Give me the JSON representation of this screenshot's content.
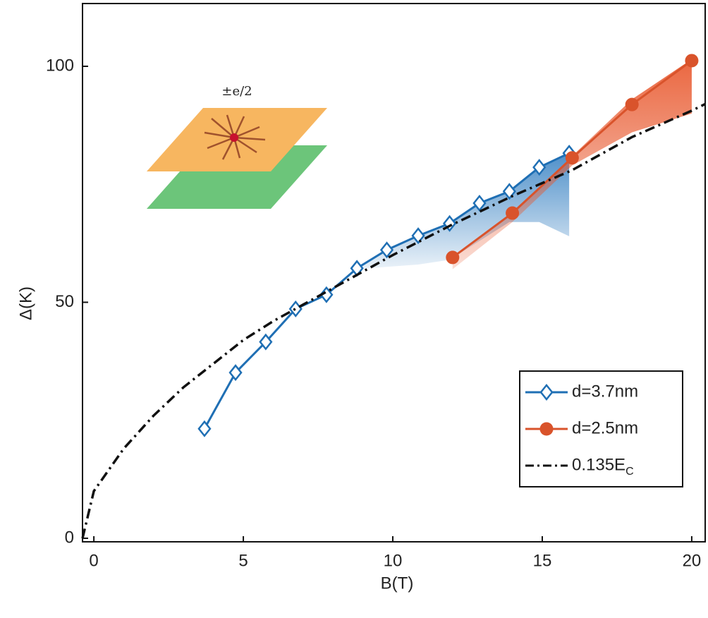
{
  "chart_data": {
    "type": "line",
    "xlabel": "B(T)",
    "ylabel": "Δ(K)",
    "inset_label": "±e/2",
    "xlim": [
      -0.38,
      20.45
    ],
    "ylim": [
      -0.75,
      113.3
    ],
    "xticks": [
      0,
      5,
      10,
      15,
      20
    ],
    "yticks": [
      0,
      50,
      100
    ],
    "legend": "lower-right",
    "series": [
      {
        "name": "d=3.7nm",
        "color": "#1f6fb4",
        "marker": "diamond",
        "x": [
          3.7,
          4.74,
          5.75,
          6.75,
          7.78,
          8.8,
          9.8,
          10.85,
          11.9,
          12.9,
          13.9,
          14.9,
          15.9
        ],
        "values": [
          23.2,
          35.1,
          41.6,
          48.6,
          51.6,
          57.2,
          61.1,
          64.1,
          66.7,
          71.0,
          73.5,
          78.6,
          81.6
        ],
        "band": {
          "x": [
            8.8,
            9.8,
            10.85,
            11.9,
            12.9,
            13.9,
            14.9,
            15.9
          ],
          "upper": [
            57.2,
            61.1,
            64.1,
            66.7,
            71.0,
            73.5,
            78.6,
            81.6
          ],
          "lower": [
            57,
            57.5,
            58,
            59,
            63,
            67,
            67,
            64
          ]
        }
      },
      {
        "name": "d=2.5nm",
        "color": "#d9532b",
        "marker": "circle",
        "x": [
          12,
          14,
          16,
          18,
          20
        ],
        "values": [
          59.5,
          68.9,
          80.6,
          91.9,
          101.2
        ],
        "band": {
          "x": [
            12,
            14,
            16,
            18,
            20
          ],
          "upper": [
            59.5,
            69,
            81,
            93,
            101.5
          ],
          "lower": [
            57,
            67,
            79,
            86,
            90
          ]
        }
      },
      {
        "name": "0.135E_C",
        "color": "#111111",
        "marker": "none",
        "dash": "dashdot",
        "x": [
          -0.38,
          0,
          1,
          2,
          3,
          4,
          5,
          6,
          7,
          8,
          9,
          10,
          12,
          14,
          16,
          18,
          20,
          20.45
        ],
        "values": [
          0,
          10,
          19,
          26,
          32,
          37,
          42,
          46,
          49.5,
          53,
          56.5,
          60,
          66.5,
          72.5,
          78,
          85,
          90.6,
          92
        ]
      }
    ]
  }
}
